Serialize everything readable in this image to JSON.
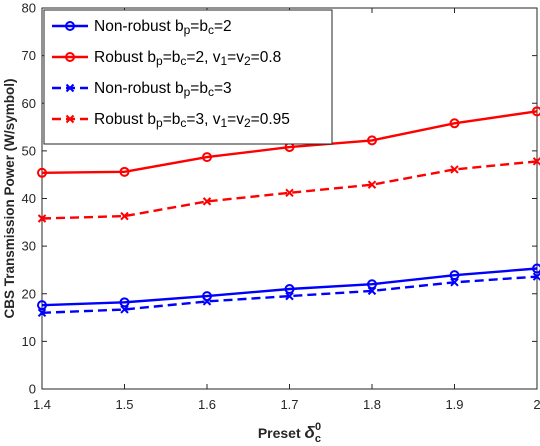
{
  "chart_data": {
    "type": "line",
    "xlabel": "Preset",
    "xlabel_symbol": "δ",
    "xlabel_sub": "c",
    "xlabel_sup": "0",
    "ylabel": "CBS Transmission Power (W/symbol)",
    "x": [
      1.4,
      1.5,
      1.6,
      1.7,
      1.8,
      1.9,
      2.0
    ],
    "x_ticks": [
      "1.4",
      "1.5",
      "1.6",
      "1.7",
      "1.8",
      "1.9",
      "2"
    ],
    "xlim": [
      1.4,
      2.0
    ],
    "ylim": [
      0,
      80
    ],
    "y_ticks": [
      0,
      10,
      20,
      30,
      40,
      50,
      60,
      70,
      80
    ],
    "grid": false,
    "legend_position": "top-left",
    "series": [
      {
        "name": "Non-robust b_p=b_c=2",
        "legend_parts": [
          [
            "Non-robust b",
            ""
          ],
          [
            "p",
            "sub"
          ],
          [
            "=b",
            ""
          ],
          [
            "c",
            "sub"
          ],
          [
            "=2",
            ""
          ]
        ],
        "values": [
          17.6,
          18.2,
          19.5,
          21.0,
          22.0,
          23.9,
          25.3
        ],
        "color": "#0000ff",
        "dash": "solid",
        "marker": "circle"
      },
      {
        "name": "Robust b_p=b_c=2, v_1=v_2=0.8",
        "legend_parts": [
          [
            "Robust b",
            ""
          ],
          [
            "p",
            "sub"
          ],
          [
            "=b",
            ""
          ],
          [
            "c",
            "sub"
          ],
          [
            "=2, v",
            ""
          ],
          [
            "1",
            "sub"
          ],
          [
            "=v",
            ""
          ],
          [
            "2",
            "sub"
          ],
          [
            "=0.8",
            ""
          ]
        ],
        "values": [
          45.4,
          45.6,
          48.7,
          50.8,
          52.2,
          55.8,
          58.3
        ],
        "color": "#ff0000",
        "dash": "solid",
        "marker": "circle"
      },
      {
        "name": "Non-robust b_p=b_c=3",
        "legend_parts": [
          [
            "Non-robust b",
            ""
          ],
          [
            "p",
            "sub"
          ],
          [
            "=b",
            ""
          ],
          [
            "c",
            "sub"
          ],
          [
            "=3",
            ""
          ]
        ],
        "values": [
          16.0,
          16.7,
          18.4,
          19.5,
          20.6,
          22.4,
          23.6
        ],
        "color": "#0000ff",
        "dash": "dashed",
        "marker": "x"
      },
      {
        "name": "Robust b_p=b_c=3, v_1=v_2=0.95",
        "legend_parts": [
          [
            "Robust b",
            ""
          ],
          [
            "p",
            "sub"
          ],
          [
            "=b",
            ""
          ],
          [
            "c",
            "sub"
          ],
          [
            "=3, v",
            ""
          ],
          [
            "1",
            "sub"
          ],
          [
            "=v",
            ""
          ],
          [
            "2",
            "sub"
          ],
          [
            "=0.95",
            ""
          ]
        ],
        "values": [
          35.8,
          36.3,
          39.4,
          41.2,
          42.9,
          46.1,
          47.8
        ],
        "color": "#ff0000",
        "dash": "dashed",
        "marker": "x"
      }
    ]
  }
}
